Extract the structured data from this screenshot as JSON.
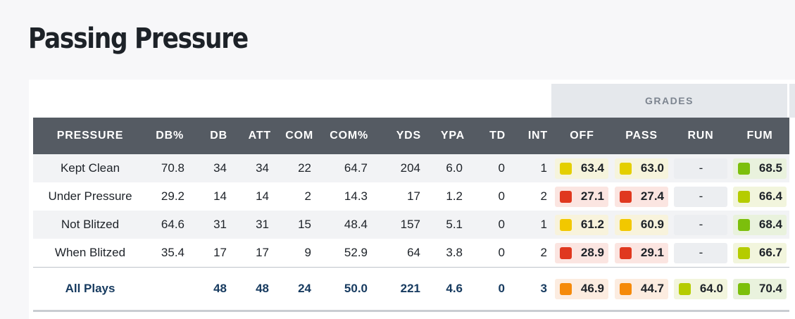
{
  "title": "Passing Pressure",
  "grades_label": "GRADES",
  "columns": [
    "PRESSURE",
    "DB%",
    "DB",
    "ATT",
    "COM",
    "COM%",
    "YDS",
    "YPA",
    "TD",
    "INT",
    "OFF",
    "PASS",
    "RUN",
    "FUM"
  ],
  "rows": [
    {
      "label": "Kept Clean",
      "db_pct": "70.8",
      "db": "34",
      "att": "34",
      "com": "22",
      "com_pct": "64.7",
      "yds": "204",
      "ypa": "6.0",
      "td": "0",
      "int": "1",
      "off": "63.4",
      "pass": "63.0",
      "run": "-",
      "fum": "68.5"
    },
    {
      "label": "Under Pressure",
      "db_pct": "29.2",
      "db": "14",
      "att": "14",
      "com": "2",
      "com_pct": "14.3",
      "yds": "17",
      "ypa": "1.2",
      "td": "0",
      "int": "2",
      "off": "27.1",
      "pass": "27.4",
      "run": "-",
      "fum": "66.4"
    },
    {
      "label": "Not Blitzed",
      "db_pct": "64.6",
      "db": "31",
      "att": "31",
      "com": "15",
      "com_pct": "48.4",
      "yds": "157",
      "ypa": "5.1",
      "td": "0",
      "int": "1",
      "off": "61.2",
      "pass": "60.9",
      "run": "-",
      "fum": "68.4"
    },
    {
      "label": "When Blitzed",
      "db_pct": "35.4",
      "db": "17",
      "att": "17",
      "com": "9",
      "com_pct": "52.9",
      "yds": "64",
      "ypa": "3.8",
      "td": "0",
      "int": "2",
      "off": "28.9",
      "pass": "29.1",
      "run": "-",
      "fum": "66.7"
    }
  ],
  "total": {
    "label": "All Plays",
    "db_pct": "",
    "db": "48",
    "att": "48",
    "com": "24",
    "com_pct": "50.0",
    "yds": "221",
    "ypa": "4.6",
    "td": "0",
    "int": "3",
    "off": "46.9",
    "pass": "44.7",
    "run": "64.0",
    "fum": "70.4"
  },
  "grade_colors": {
    "yellow": "#e4cf00",
    "yellow_bg": "#f6f4dc",
    "gold": "#f2c800",
    "gold_bg": "#f8f3dc",
    "red": "#e0381f",
    "red_bg": "#fbe5e1",
    "orange": "#f58a0b",
    "orange_bg": "#fcece0",
    "lime": "#b5cc00",
    "lime_bg": "#f2f5dd",
    "green": "#7cbf0c",
    "green_bg": "#e9f2dd",
    "dash_bg": "#eceef1"
  },
  "grade_color_map": {
    "rows": [
      {
        "off": "yellow",
        "pass": "yellow",
        "fum": "green"
      },
      {
        "off": "red",
        "pass": "red",
        "fum": "lime"
      },
      {
        "off": "gold",
        "pass": "gold",
        "fum": "green"
      },
      {
        "off": "red",
        "pass": "red",
        "fum": "lime"
      }
    ],
    "total": {
      "off": "orange",
      "pass": "orange",
      "run": "lime",
      "fum": "green"
    }
  }
}
